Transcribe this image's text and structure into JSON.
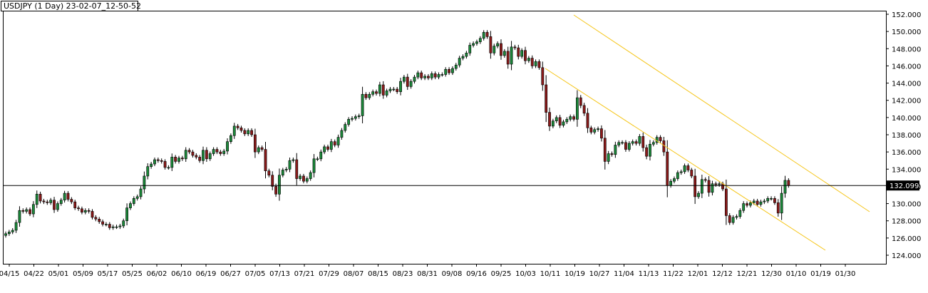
{
  "chart_data": {
    "type": "candlestick",
    "title": "USDJPY (1 Day) 23-02-07_12-50-52",
    "ylim": [
      123.3,
      152.3
    ],
    "y_ticks": [
      "152.000",
      "150.000",
      "148.000",
      "146.000",
      "144.000",
      "142.000",
      "140.000",
      "138.000",
      "136.000",
      "134.000",
      "132.000",
      "130.000",
      "128.000",
      "126.000",
      "124.000"
    ],
    "x_ticks": [
      "04/15",
      "04/22",
      "05/01",
      "05/09",
      "05/17",
      "05/25",
      "06/02",
      "06/10",
      "06/19",
      "06/27",
      "07/05",
      "07/13",
      "07/21",
      "07/29",
      "08/07",
      "08/15",
      "08/23",
      "08/31",
      "09/08",
      "09/16",
      "09/25",
      "10/03",
      "10/11",
      "10/19",
      "10/27",
      "11/04",
      "11/13",
      "11/22",
      "12/01",
      "12/12",
      "12/21",
      "12/30",
      "01/10",
      "01/19",
      "01/30"
    ],
    "current_price": "132.099",
    "colors": {
      "up": "#1b8a3a",
      "down": "#8b1a1a",
      "wick": "#000000",
      "channel": "#f5c518",
      "price_line": "#000000"
    },
    "closes": [
      126.5,
      126.7,
      126.9,
      127.8,
      129.2,
      129.1,
      129.3,
      128.8,
      129.9,
      131.1,
      130.3,
      130.2,
      130.1,
      130.4,
      129.3,
      130.0,
      130.4,
      131.2,
      130.5,
      130.2,
      129.5,
      129.4,
      129.0,
      129.2,
      129.1,
      128.4,
      128.2,
      127.9,
      127.6,
      127.6,
      127.2,
      127.3,
      127.3,
      127.4,
      128.0,
      129.5,
      130.0,
      130.6,
      130.8,
      131.7,
      133.2,
      134.3,
      134.6,
      135.1,
      135.0,
      134.9,
      134.2,
      134.2,
      135.4,
      134.9,
      135.3,
      135.2,
      136.2,
      136.0,
      135.6,
      135.4,
      135.0,
      136.2,
      135.2,
      135.8,
      136.3,
      136.0,
      135.8,
      136.1,
      137.2,
      137.9,
      139.0,
      138.8,
      138.5,
      138.1,
      138.5,
      138.0,
      136.0,
      136.5,
      136.3,
      133.8,
      133.3,
      132.0,
      131.1,
      133.3,
      133.9,
      134.0,
      135.0,
      135.1,
      132.9,
      133.2,
      132.6,
      132.9,
      133.6,
      135.2,
      135.2,
      136.0,
      136.6,
      136.3,
      137.2,
      136.8,
      137.7,
      138.5,
      139.2,
      139.8,
      139.9,
      140.1,
      140.2,
      142.7,
      142.3,
      142.7,
      143.0,
      142.8,
      143.8,
      142.6,
      143.1,
      143.3,
      143.3,
      143.0,
      144.2,
      144.7,
      143.6,
      144.2,
      144.7,
      145.2,
      144.6,
      144.8,
      144.6,
      145.1,
      144.7,
      145.0,
      145.0,
      145.6,
      145.2,
      145.7,
      146.1,
      146.9,
      147.1,
      147.5,
      148.4,
      148.6,
      148.8,
      149.2,
      149.9,
      149.4,
      147.5,
      148.3,
      148.6,
      147.2,
      147.7,
      146.2,
      148.2,
      148.1,
      147.1,
      147.8,
      146.6,
      146.9,
      146.0,
      146.5,
      145.8,
      143.8,
      140.6,
      139.0,
      139.6,
      140.0,
      139.1,
      139.5,
      139.8,
      140.1,
      139.8,
      142.3,
      141.4,
      140.5,
      138.8,
      138.3,
      138.6,
      138.7,
      137.6,
      134.9,
      135.8,
      135.7,
      136.8,
      137.1,
      137.1,
      136.3,
      137.0,
      137.2,
      137.0,
      137.8,
      136.5,
      135.5,
      136.9,
      137.1,
      137.7,
      137.3,
      136.0,
      132.1,
      132.6,
      132.9,
      133.6,
      133.7,
      134.4,
      133.9,
      133.2,
      130.8,
      131.2,
      132.8,
      132.7,
      131.3,
      132.3,
      132.2,
      132.3,
      131.7,
      128.6,
      127.8,
      128.4,
      128.5,
      129.2,
      130.0,
      129.8,
      130.1,
      130.3,
      129.9,
      130.2,
      130.3,
      130.6,
      130.6,
      130.1,
      128.9,
      131.2,
      132.7,
      132.1
    ]
  }
}
